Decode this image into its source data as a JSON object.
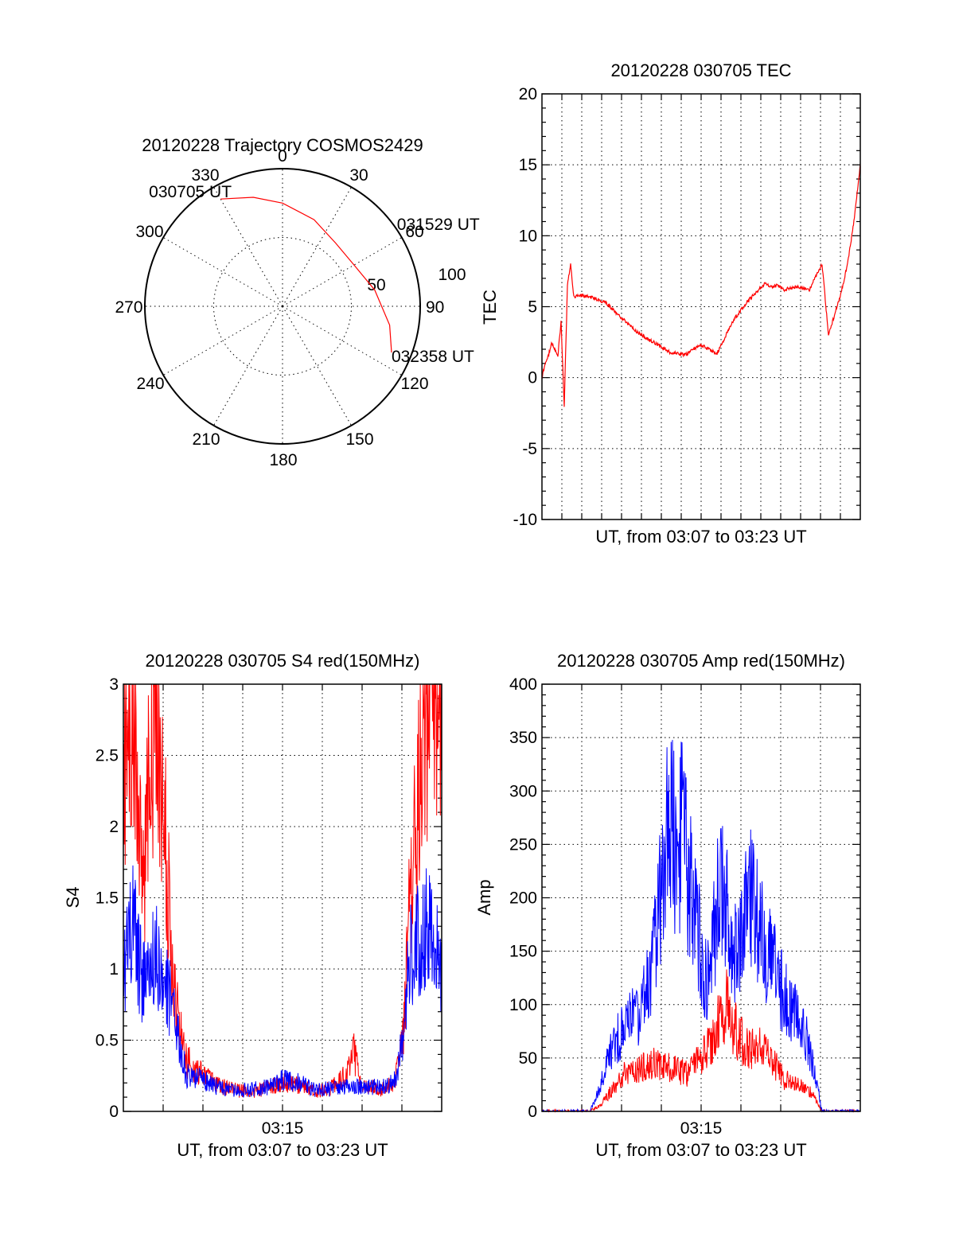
{
  "chart_data": [
    {
      "id": "polar",
      "type": "polar",
      "title": "20120228 Trajectory COSMOS2429",
      "angle_labels": [
        "0",
        "30",
        "60",
        "90",
        "120",
        "150",
        "180",
        "210",
        "240",
        "270",
        "300",
        "330"
      ],
      "radius_labels": [
        "50",
        "100"
      ],
      "radius_range": [
        0,
        100
      ],
      "grid": true,
      "track_color": "#ff0000",
      "track": [
        {
          "az": 330,
          "r": 90
        },
        {
          "az": 345,
          "r": 82
        },
        {
          "az": 0,
          "r": 75
        },
        {
          "az": 20,
          "r": 67
        },
        {
          "az": 40,
          "r": 60
        },
        {
          "az": 60,
          "r": 60
        },
        {
          "az": 80,
          "r": 68
        },
        {
          "az": 100,
          "r": 79
        },
        {
          "az": 113,
          "r": 86
        }
      ],
      "annotations": [
        {
          "text": "030705 UT",
          "az": 330,
          "r": 90
        },
        {
          "text": "031529 UT",
          "az": 52,
          "r": 60
        },
        {
          "text": "032358 UT",
          "az": 113,
          "r": 86
        }
      ]
    },
    {
      "id": "tec",
      "type": "line",
      "title": "20120228 030705 TEC",
      "xlabel": "UT, from 03:07 to 03:23 UT",
      "ylabel": "TEC",
      "ylim": [
        -10,
        20
      ],
      "yticks": [
        "-10",
        "-5",
        "0",
        "5",
        "10",
        "15",
        "20"
      ],
      "xlim": [
        0,
        1
      ],
      "grid": true,
      "series": [
        {
          "color": "#ff0000",
          "x": [
            0,
            0.01,
            0.02,
            0.03,
            0.04,
            0.05,
            0.06,
            0.07,
            0.08,
            0.09,
            0.1,
            0.12,
            0.15,
            0.2,
            0.25,
            0.3,
            0.35,
            0.4,
            0.45,
            0.5,
            0.55,
            0.6,
            0.65,
            0.7,
            0.72,
            0.74,
            0.76,
            0.8,
            0.84,
            0.88,
            0.9,
            0.92,
            0.94,
            0.96,
            0.98,
            1.0
          ],
          "y": [
            0,
            1,
            1.5,
            2.5,
            2,
            1.5,
            4,
            -2,
            6.5,
            8,
            5.7,
            5.8,
            5.7,
            5.3,
            4.2,
            3.2,
            2.5,
            1.8,
            1.6,
            2.3,
            1.7,
            4.0,
            5.5,
            6.6,
            6.4,
            6.5,
            6.2,
            6.4,
            6.2,
            8,
            3,
            4.5,
            6,
            8,
            11,
            15
          ]
        }
      ]
    },
    {
      "id": "s4",
      "type": "line",
      "title": "20120228 030705 S4 red(150MHz)",
      "xlabel": "UT, from 03:07 to 03:23 UT",
      "ylabel": "S4",
      "ylim": [
        0,
        3
      ],
      "yticks": [
        "0",
        "0.5",
        "1",
        "1.5",
        "2",
        "2.5",
        "3"
      ],
      "xticks": [
        {
          "label": "03:15",
          "at": 0.5
        }
      ],
      "xlim": [
        0,
        1
      ],
      "grid": true,
      "series": [
        {
          "color": "#ff0000",
          "x": [
            0,
            0.03,
            0.06,
            0.1,
            0.13,
            0.16,
            0.18,
            0.2,
            0.25,
            0.3,
            0.35,
            0.4,
            0.45,
            0.5,
            0.55,
            0.6,
            0.65,
            0.7,
            0.72,
            0.75,
            0.8,
            0.85,
            0.88,
            0.9,
            0.95,
            1.0
          ],
          "y": [
            2.5,
            3,
            1.5,
            3,
            2,
            0.8,
            0.6,
            0.35,
            0.25,
            0.18,
            0.15,
            0.14,
            0.16,
            0.2,
            0.18,
            0.14,
            0.16,
            0.25,
            0.45,
            0.2,
            0.15,
            0.2,
            0.5,
            1.5,
            2.8,
            3
          ]
        },
        {
          "color": "#0000ff",
          "x": [
            0,
            0.03,
            0.06,
            0.1,
            0.13,
            0.16,
            0.18,
            0.2,
            0.25,
            0.3,
            0.35,
            0.4,
            0.45,
            0.5,
            0.55,
            0.6,
            0.65,
            0.7,
            0.75,
            0.8,
            0.85,
            0.88,
            0.9,
            0.95,
            1.0
          ],
          "y": [
            1.0,
            1.3,
            0.9,
            1.1,
            0.9,
            0.7,
            0.4,
            0.25,
            0.22,
            0.17,
            0.15,
            0.15,
            0.17,
            0.22,
            0.2,
            0.15,
            0.16,
            0.17,
            0.17,
            0.17,
            0.2,
            0.5,
            1.1,
            1.3,
            1.0
          ]
        }
      ]
    },
    {
      "id": "amp",
      "type": "line",
      "title": "20120228 030705 Amp red(150MHz)",
      "xlabel": "UT, from 03:07 to 03:23 UT",
      "ylabel": "Amp",
      "ylim": [
        0,
        400
      ],
      "yticks": [
        "0",
        "50",
        "100",
        "150",
        "200",
        "250",
        "300",
        "350",
        "400"
      ],
      "xticks": [
        {
          "label": "03:15",
          "at": 0.5
        }
      ],
      "xlim": [
        0,
        1
      ],
      "grid": true,
      "series": [
        {
          "color": "#ff0000",
          "x": [
            0,
            0.15,
            0.18,
            0.22,
            0.26,
            0.3,
            0.34,
            0.38,
            0.42,
            0.46,
            0.5,
            0.54,
            0.56,
            0.58,
            0.6,
            0.62,
            0.64,
            0.68,
            0.72,
            0.76,
            0.8,
            0.84,
            0.86,
            0.88,
            1.0
          ],
          "y": [
            0,
            0,
            5,
            20,
            35,
            40,
            45,
            42,
            40,
            35,
            50,
            70,
            90,
            100,
            80,
            70,
            60,
            60,
            50,
            30,
            25,
            20,
            10,
            0,
            0
          ]
        },
        {
          "color": "#0000ff",
          "x": [
            0,
            0.15,
            0.18,
            0.22,
            0.26,
            0.3,
            0.34,
            0.38,
            0.4,
            0.42,
            0.44,
            0.46,
            0.48,
            0.5,
            0.52,
            0.54,
            0.56,
            0.58,
            0.6,
            0.62,
            0.64,
            0.66,
            0.68,
            0.72,
            0.76,
            0.8,
            0.84,
            0.86,
            0.88,
            1.0
          ],
          "y": [
            0,
            0,
            20,
            60,
            80,
            90,
            130,
            220,
            280,
            240,
            260,
            220,
            180,
            150,
            120,
            170,
            210,
            190,
            150,
            150,
            190,
            200,
            170,
            140,
            110,
            90,
            60,
            30,
            0,
            0
          ]
        }
      ]
    }
  ]
}
